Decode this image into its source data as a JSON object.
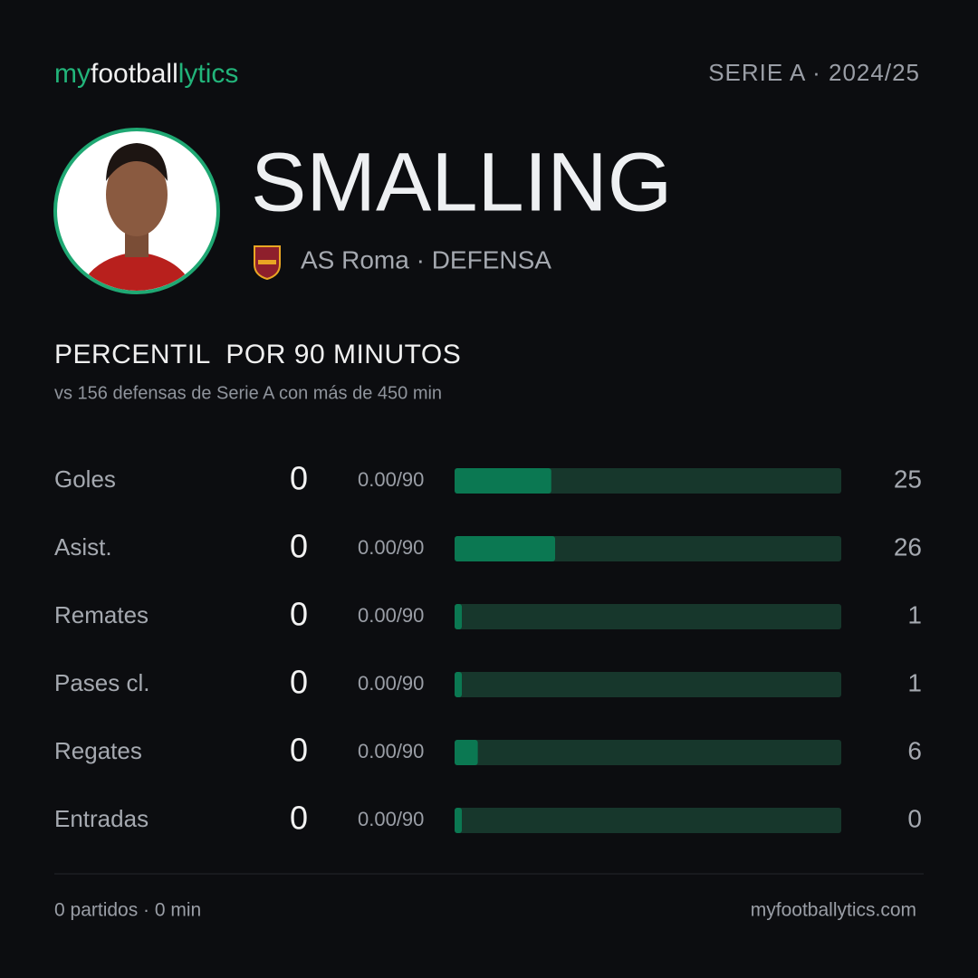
{
  "header": {
    "brand": [
      "my",
      "football",
      "lytics"
    ],
    "league": "SERIE A · 2024/25"
  },
  "player": {
    "name": "SMALLING",
    "info": "AS Roma · DEFENSA"
  },
  "section": {
    "title": "PERCENTIL  POR 90 MINUTOS",
    "subtitle": "vs 156 defensas de Serie A con más de 450 min"
  },
  "chart_data": {
    "type": "bar",
    "orientation": "horizontal",
    "categories": [
      "Goles",
      "Asist.",
      "Remates",
      "Pases cl.",
      "Regates",
      "Entradas"
    ],
    "values": [
      25,
      26,
      1,
      1,
      6,
      0
    ],
    "xlim": [
      0,
      100
    ],
    "color": "#0b7852",
    "track_color": "#17372c"
  },
  "stats": [
    {
      "value": 0,
      "per90": "0.00/90"
    },
    {
      "value": 0,
      "per90": "0.00/90"
    },
    {
      "value": 0,
      "per90": "0.00/90"
    },
    {
      "value": 0,
      "per90": "0.00/90"
    },
    {
      "value": 0,
      "per90": "0.00/90"
    },
    {
      "value": 0,
      "per90": "0.00/90"
    }
  ],
  "footer": {
    "left": "0 partidos · 0 min",
    "right": "myfootballytics.com"
  }
}
